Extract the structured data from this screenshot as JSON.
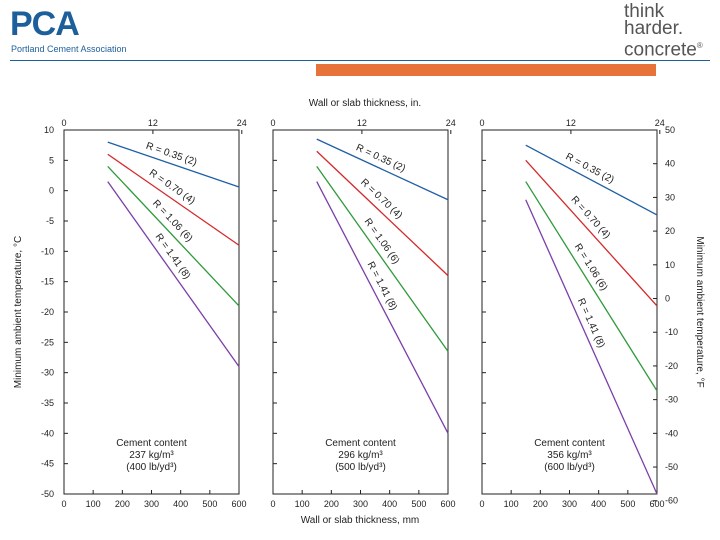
{
  "header": {
    "pca_logo_letters": "PCA",
    "pca_logo_subtitle": "Portland Cement Association",
    "thc_line1": "think",
    "thc_line2": "harder.",
    "thc_line3": "concrete",
    "thc_mark": "®",
    "accent_color": "#e8733a",
    "brand_color": "#1d5f9a"
  },
  "chart_data": {
    "type": "line",
    "top_axis_label": "Wall or slab thickness, in.",
    "top_ticks": [
      "0",
      "12",
      "24"
    ],
    "xlabel": "Wall or slab thickness, mm",
    "x_ticks": [
      "0",
      "100",
      "200",
      "300",
      "400",
      "500",
      "600"
    ],
    "xlim": [
      0,
      600
    ],
    "ylabel_left": "Minimum ambient temperature, °C",
    "ylim_c": [
      -50,
      10
    ],
    "y_ticks_c": [
      "10",
      "5",
      "0",
      "-5",
      "-10",
      "-15",
      "-20",
      "-25",
      "-30",
      "-35",
      "-40",
      "-45",
      "-50"
    ],
    "ylabel_right": "Minimum ambient temperature, °F",
    "y_ticks_f": [
      "50",
      "40",
      "30",
      "20",
      "10",
      "0",
      "-10",
      "-20",
      "-30",
      "-40",
      "-50",
      "-60"
    ],
    "panels": [
      {
        "content_label": "Cement content",
        "content_metric": "237 kg/m³",
        "content_imperial": "(400 lb/yd³)",
        "series": [
          {
            "name": "R = 0.35 (2)",
            "color": "#1f5fa6",
            "x": [
              150,
              600
            ],
            "y": [
              8,
              0.6
            ]
          },
          {
            "name": "R = 0.70 (4)",
            "color": "#d42a2a",
            "x": [
              150,
              600
            ],
            "y": [
              6,
              -9
            ]
          },
          {
            "name": "R = 1.06 (6)",
            "color": "#2f9a3a",
            "x": [
              150,
              600
            ],
            "y": [
              4,
              -19
            ]
          },
          {
            "name": "R = 1.41 (8)",
            "color": "#7a3fa8",
            "x": [
              150,
              600
            ],
            "y": [
              1.5,
              -29
            ]
          }
        ]
      },
      {
        "content_label": "Cement content",
        "content_metric": "296 kg/m³",
        "content_imperial": "(500 lb/yd³)",
        "series": [
          {
            "name": "R = 0.35 (2)",
            "color": "#1f5fa6",
            "x": [
              150,
              600
            ],
            "y": [
              8.5,
              -1.5
            ]
          },
          {
            "name": "R = 0.70 (4)",
            "color": "#d42a2a",
            "x": [
              150,
              600
            ],
            "y": [
              6.5,
              -14
            ]
          },
          {
            "name": "R = 1.06 (6)",
            "color": "#2f9a3a",
            "x": [
              150,
              600
            ],
            "y": [
              4,
              -26.5
            ]
          },
          {
            "name": "R = 1.41 (8)",
            "color": "#7a3fa8",
            "x": [
              150,
              600
            ],
            "y": [
              1.5,
              -40
            ]
          }
        ]
      },
      {
        "content_label": "Cement content",
        "content_metric": "356 kg/m³",
        "content_imperial": "(600 lb/yd³)",
        "series": [
          {
            "name": "R = 0.35 (2)",
            "color": "#1f5fa6",
            "x": [
              150,
              600
            ],
            "y": [
              7.5,
              -4
            ]
          },
          {
            "name": "R = 0.70 (4)",
            "color": "#d42a2a",
            "x": [
              150,
              600
            ],
            "y": [
              5,
              -19
            ]
          },
          {
            "name": "R = 1.06 (6)",
            "color": "#2f9a3a",
            "x": [
              150,
              600
            ],
            "y": [
              1.5,
              -33
            ]
          },
          {
            "name": "R = 1.41 (8)",
            "color": "#7a3fa8",
            "x": [
              150,
              600
            ],
            "y": [
              -1.5,
              -50
            ]
          }
        ]
      }
    ]
  }
}
